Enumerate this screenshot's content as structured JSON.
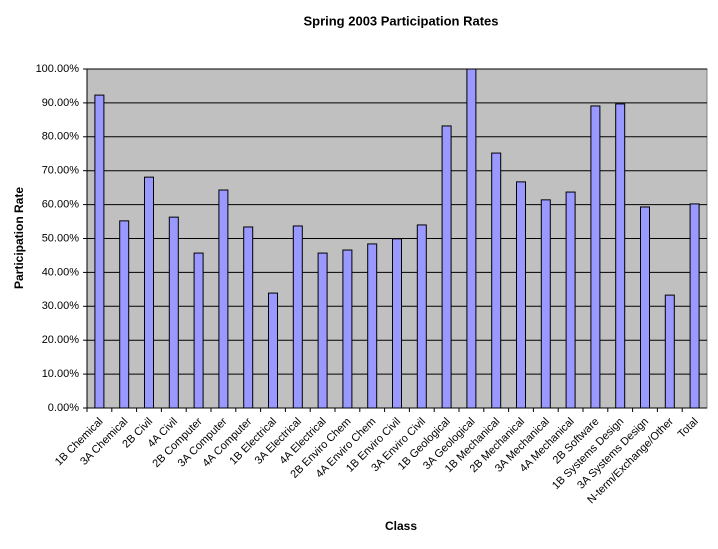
{
  "chart_data": {
    "type": "bar",
    "title": "Spring 2003 Participation Rates",
    "x_label": "Class",
    "y_label": "Participation Rate",
    "categories": [
      "1B Chemical",
      "3A Chemical",
      "2B Civil",
      "4A Civil",
      "2B Computer",
      "3A Computer",
      "4A Computer",
      "1B Electrical",
      "3A Electrical",
      "4A Electrical",
      "2B Enviro Chem",
      "4A Enviro Chem",
      "1B Enviro Civil",
      "3A Enviro Civil",
      "1B Geological",
      "3A Geological",
      "1B Mechanical",
      "2B Mechanical",
      "3A Mechanical",
      "4A Mechanical",
      "2B Software",
      "1B Systems Design",
      "3A Systems Design",
      "N-term/Exchange/Other",
      "Total"
    ],
    "values": [
      92.3,
      55.2,
      68.1,
      56.3,
      45.7,
      64.3,
      53.4,
      33.9,
      53.7,
      45.7,
      46.6,
      48.4,
      49.9,
      54.0,
      83.2,
      100.0,
      75.2,
      66.7,
      61.4,
      63.7,
      89.1,
      89.7,
      59.3,
      33.3,
      60.2
    ],
    "color": "#9999ff",
    "ylim": [
      0,
      100
    ],
    "yticks": [
      {
        "value": 0,
        "label": "0.00%"
      },
      {
        "value": 10,
        "label": "10.00%"
      },
      {
        "value": 20,
        "label": "20.00%"
      },
      {
        "value": 30,
        "label": "30.00%"
      },
      {
        "value": 40,
        "label": "40.00%"
      },
      {
        "value": 50,
        "label": "50.00%"
      },
      {
        "value": 60,
        "label": "60.00%"
      },
      {
        "value": 70,
        "label": "70.00%"
      },
      {
        "value": 80,
        "label": "80.00%"
      },
      {
        "value": 90,
        "label": "90.00%"
      },
      {
        "value": 100,
        "label": "100.00%"
      }
    ],
    "grid": true
  }
}
